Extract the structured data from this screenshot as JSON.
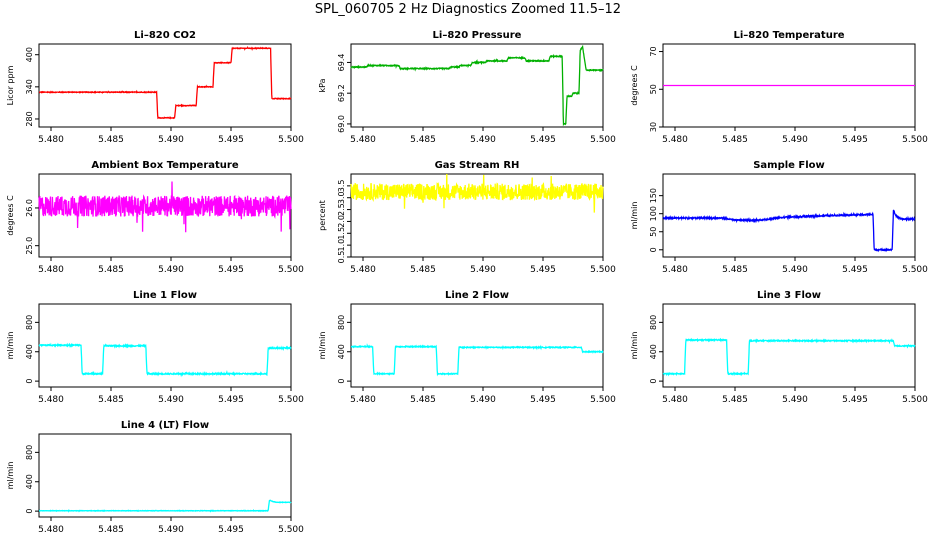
{
  "figure": {
    "title": "SPL_060705  2 Hz Diagnostics Zoomed 11.5–12"
  },
  "chart_data": [
    {
      "type": "line",
      "title": "Li–820 CO2",
      "ylabel": "Licor ppm",
      "color": "#ff0000",
      "xlim": [
        5.479,
        5.5
      ],
      "ylim": [
        265,
        420
      ],
      "xticks": [
        "5.480",
        "5.485",
        "5.490",
        "5.495",
        "5.500"
      ],
      "xtick_values": [
        5.48,
        5.485,
        5.49,
        5.495,
        5.5
      ],
      "yticks": [
        "280",
        "340",
        "400"
      ],
      "ytick_values": [
        280,
        340,
        400
      ],
      "noise": 0.6,
      "x": [
        5.479,
        5.4888,
        5.4889,
        5.4903,
        5.4904,
        5.4921,
        5.4922,
        5.4935,
        5.4936,
        5.495,
        5.4951,
        5.4983,
        5.4984,
        5.5
      ],
      "y": [
        330,
        330,
        282,
        282,
        305,
        305,
        340,
        340,
        385,
        385,
        412,
        412,
        318,
        318
      ]
    },
    {
      "type": "line",
      "title": "Li–820 Pressure",
      "ylabel": "kPa",
      "color": "#00b000",
      "xlim": [
        5.479,
        5.5
      ],
      "ylim": [
        68.98,
        69.52
      ],
      "xticks": [
        "5.480",
        "5.485",
        "5.490",
        "5.495",
        "5.500"
      ],
      "xtick_values": [
        5.48,
        5.485,
        5.49,
        5.495,
        5.5
      ],
      "yticks": [
        "69.0",
        "69.2",
        "69.4"
      ],
      "ytick_values": [
        69.0,
        69.2,
        69.4
      ],
      "noise": 0.003,
      "x": [
        5.479,
        5.4803,
        5.4804,
        5.483,
        5.4831,
        5.4872,
        5.4873,
        5.488,
        5.4881,
        5.489,
        5.4891,
        5.4902,
        5.4903,
        5.492,
        5.4921,
        5.4935,
        5.4936,
        5.4955,
        5.4956,
        5.4966,
        5.4967,
        5.4969,
        5.497,
        5.4974,
        5.4975,
        5.498,
        5.4981,
        5.4983,
        5.4986,
        5.5
      ],
      "y": [
        69.37,
        69.37,
        69.38,
        69.38,
        69.36,
        69.36,
        69.37,
        69.37,
        69.38,
        69.38,
        69.4,
        69.4,
        69.41,
        69.41,
        69.43,
        69.43,
        69.41,
        69.41,
        69.44,
        69.44,
        69.0,
        69.0,
        69.18,
        69.18,
        69.2,
        69.2,
        69.48,
        69.5,
        69.35,
        69.35
      ]
    },
    {
      "type": "line",
      "title": "Li–820 Temperature",
      "ylabel": "degrees C",
      "color": "#ff00ff",
      "xlim": [
        5.479,
        5.5
      ],
      "ylim": [
        30,
        74
      ],
      "xticks": [
        "5.480",
        "5.485",
        "5.490",
        "5.495",
        "5.500"
      ],
      "xtick_values": [
        5.48,
        5.485,
        5.49,
        5.495,
        5.5
      ],
      "yticks": [
        "30",
        "50",
        "70"
      ],
      "ytick_values": [
        30,
        50,
        70
      ],
      "noise": 0,
      "x": [
        5.479,
        5.5
      ],
      "y": [
        52,
        52
      ]
    },
    {
      "type": "line",
      "title": "Ambient Box Temperature",
      "ylabel": "degrees C",
      "color": "#ff00ff",
      "xlim": [
        5.479,
        5.5
      ],
      "ylim": [
        24.7,
        26.9
      ],
      "xticks": [
        "5.480",
        "5.485",
        "5.490",
        "5.495",
        "5.500"
      ],
      "xtick_values": [
        5.48,
        5.485,
        5.49,
        5.495,
        5.5
      ],
      "yticks": [
        "25.0",
        "26.0"
      ],
      "ytick_values": [
        25.0,
        26.0
      ],
      "noise": 0.28,
      "x": [
        5.479,
        5.5
      ],
      "y": [
        26.05,
        26.05
      ]
    },
    {
      "type": "line",
      "title": "Gas Stream RH",
      "ylabel": "percent",
      "color": "#ffff00",
      "xlim": [
        5.479,
        5.5
      ],
      "ylim": [
        0.5,
        4.0
      ],
      "xticks": [
        "5.480",
        "5.485",
        "5.490",
        "5.495",
        "5.500"
      ],
      "xtick_values": [
        5.48,
        5.485,
        5.49,
        5.495,
        5.5
      ],
      "yticks": [
        "0.5",
        "1.0",
        "1.5",
        "2.0",
        "2.5",
        "3.0",
        "3.5"
      ],
      "ytick_values": [
        0.5,
        1.0,
        1.5,
        2.0,
        2.5,
        3.0,
        3.5
      ],
      "noise": 0.35,
      "x": [
        5.479,
        5.5
      ],
      "y": [
        3.25,
        3.25
      ]
    },
    {
      "type": "line",
      "title": "Sample Flow",
      "ylabel": "ml/min",
      "color": "#0000ff",
      "xlim": [
        5.479,
        5.5
      ],
      "ylim": [
        -20,
        210
      ],
      "xticks": [
        "5.480",
        "5.485",
        "5.490",
        "5.495",
        "5.500"
      ],
      "xtick_values": [
        5.48,
        5.485,
        5.49,
        5.495,
        5.5
      ],
      "yticks": [
        "0",
        "50",
        "100",
        "150"
      ],
      "ytick_values": [
        0,
        50,
        100,
        150
      ],
      "noise": 2,
      "x": [
        5.479,
        5.484,
        5.485,
        5.487,
        5.489,
        5.493,
        5.4965,
        5.4966,
        5.4981,
        5.4982,
        5.4984,
        5.4988,
        5.5
      ],
      "y": [
        88,
        88,
        82,
        82,
        90,
        95,
        98,
        0,
        0,
        110,
        95,
        85,
        85
      ]
    },
    {
      "type": "line",
      "title": "Line 1 Flow",
      "ylabel": "ml/min",
      "color": "#00ffff",
      "xlim": [
        5.479,
        5.5
      ],
      "ylim": [
        -80,
        1050
      ],
      "xticks": [
        "5.480",
        "5.485",
        "5.490",
        "5.495",
        "5.500"
      ],
      "xtick_values": [
        5.48,
        5.485,
        5.49,
        5.495,
        5.5
      ],
      "yticks": [
        "0",
        "400",
        "800"
      ],
      "ytick_values": [
        0,
        400,
        800
      ],
      "noise": 8,
      "x": [
        5.479,
        5.4825,
        5.4826,
        5.4843,
        5.4844,
        5.4879,
        5.488,
        5.498,
        5.4981,
        5.5
      ],
      "y": [
        490,
        490,
        100,
        100,
        480,
        480,
        100,
        100,
        450,
        450
      ]
    },
    {
      "type": "line",
      "title": "Line 2 Flow",
      "ylabel": "ml/min",
      "color": "#00ffff",
      "xlim": [
        5.479,
        5.5
      ],
      "ylim": [
        -80,
        1050
      ],
      "xticks": [
        "5.480",
        "5.485",
        "5.490",
        "5.495",
        "5.500"
      ],
      "xtick_values": [
        5.48,
        5.485,
        5.49,
        5.495,
        5.5
      ],
      "yticks": [
        "0",
        "400",
        "800"
      ],
      "ytick_values": [
        0,
        400,
        800
      ],
      "noise": 6,
      "x": [
        5.479,
        5.4808,
        5.4809,
        5.4826,
        5.4827,
        5.4861,
        5.4862,
        5.4879,
        5.488,
        5.4982,
        5.4983,
        5.5
      ],
      "y": [
        470,
        470,
        100,
        100,
        470,
        470,
        100,
        100,
        460,
        460,
        400,
        400
      ]
    },
    {
      "type": "line",
      "title": "Line 3 Flow",
      "ylabel": "ml/min",
      "color": "#00ffff",
      "xlim": [
        5.479,
        5.5
      ],
      "ylim": [
        -80,
        1050
      ],
      "xticks": [
        "5.480",
        "5.485",
        "5.490",
        "5.495",
        "5.500"
      ],
      "xtick_values": [
        5.48,
        5.485,
        5.49,
        5.495,
        5.5
      ],
      "yticks": [
        "0",
        "400",
        "800"
      ],
      "ytick_values": [
        0,
        400,
        800
      ],
      "noise": 7,
      "x": [
        5.479,
        5.4808,
        5.4809,
        5.4843,
        5.4844,
        5.4861,
        5.4862,
        5.4982,
        5.4983,
        5.5
      ],
      "y": [
        100,
        100,
        560,
        560,
        100,
        100,
        550,
        550,
        480,
        480
      ]
    },
    {
      "type": "line",
      "title": "Line 4 (LT) Flow",
      "ylabel": "ml/min",
      "color": "#00ffff",
      "xlim": [
        5.479,
        5.5
      ],
      "ylim": [
        -80,
        1050
      ],
      "xticks": [
        "5.480",
        "5.485",
        "5.490",
        "5.495",
        "5.500"
      ],
      "xtick_values": [
        5.48,
        5.485,
        5.49,
        5.495,
        5.5
      ],
      "yticks": [
        "0",
        "400",
        "800"
      ],
      "ytick_values": [
        0,
        400,
        800
      ],
      "noise": 3,
      "x": [
        5.479,
        5.4981,
        5.4982,
        5.4985,
        5.4988,
        5.5
      ],
      "y": [
        5,
        5,
        150,
        130,
        120,
        120
      ]
    }
  ]
}
